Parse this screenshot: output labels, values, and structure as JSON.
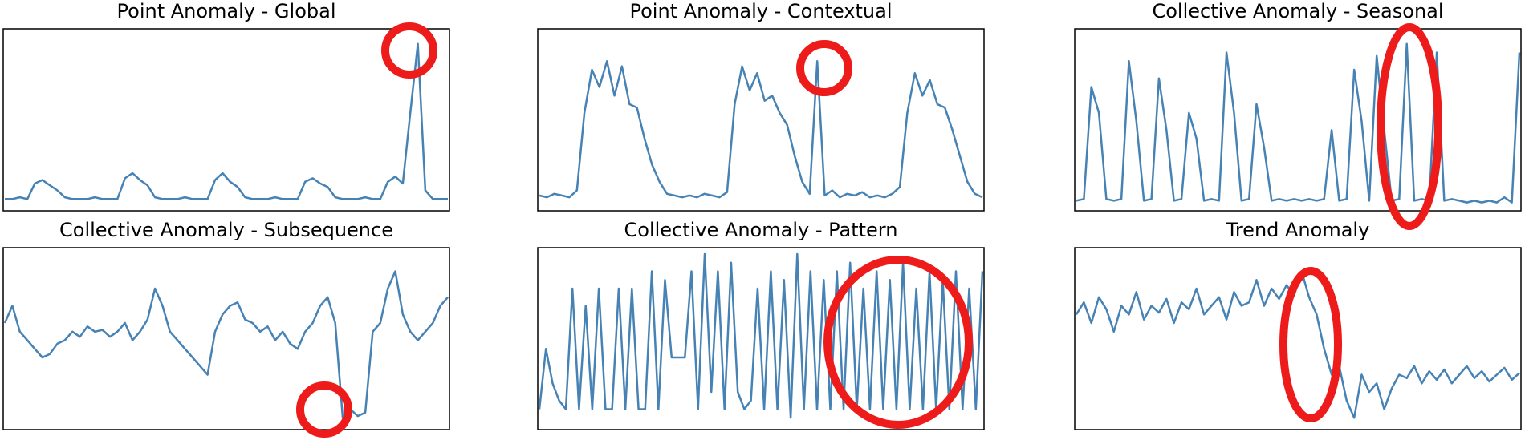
{
  "chart_data": [
    {
      "type": "line",
      "title": "Point Anomaly - Global",
      "color": "#4682b4",
      "ylim": [
        0,
        1
      ],
      "values": [
        0.05,
        0.05,
        0.06,
        0.05,
        0.14,
        0.16,
        0.13,
        0.1,
        0.06,
        0.05,
        0.05,
        0.05,
        0.06,
        0.05,
        0.05,
        0.05,
        0.17,
        0.2,
        0.16,
        0.13,
        0.06,
        0.05,
        0.05,
        0.05,
        0.06,
        0.05,
        0.05,
        0.05,
        0.16,
        0.2,
        0.15,
        0.12,
        0.06,
        0.05,
        0.05,
        0.05,
        0.06,
        0.05,
        0.05,
        0.05,
        0.15,
        0.17,
        0.14,
        0.12,
        0.06,
        0.05,
        0.05,
        0.05,
        0.06,
        0.05,
        0.05,
        0.15,
        0.18,
        0.14,
        0.55,
        0.95,
        0.1,
        0.05,
        0.05,
        0.05
      ]
    },
    {
      "type": "line",
      "title": "Point Anomaly - Contextual",
      "color": "#4682b4",
      "ylim": [
        0,
        1
      ],
      "values": [
        0.07,
        0.06,
        0.08,
        0.07,
        0.06,
        0.1,
        0.55,
        0.8,
        0.7,
        0.85,
        0.65,
        0.82,
        0.6,
        0.58,
        0.4,
        0.25,
        0.15,
        0.08,
        0.07,
        0.06,
        0.07,
        0.06,
        0.08,
        0.07,
        0.06,
        0.09,
        0.6,
        0.82,
        0.68,
        0.78,
        0.62,
        0.65,
        0.55,
        0.48,
        0.3,
        0.15,
        0.08,
        0.85,
        0.07,
        0.1,
        0.06,
        0.08,
        0.07,
        0.09,
        0.06,
        0.07,
        0.06,
        0.08,
        0.12,
        0.55,
        0.78,
        0.65,
        0.74,
        0.6,
        0.58,
        0.45,
        0.3,
        0.15,
        0.08,
        0.06
      ]
    },
    {
      "type": "line",
      "title": "Collective Anomaly - Seasonal",
      "color": "#4682b4",
      "ylim": [
        0,
        1
      ],
      "values": [
        0.04,
        0.05,
        0.7,
        0.55,
        0.05,
        0.04,
        0.05,
        0.85,
        0.5,
        0.04,
        0.05,
        0.75,
        0.45,
        0.04,
        0.05,
        0.55,
        0.4,
        0.04,
        0.05,
        0.04,
        0.9,
        0.55,
        0.04,
        0.05,
        0.6,
        0.35,
        0.04,
        0.05,
        0.04,
        0.05,
        0.04,
        0.05,
        0.04,
        0.05,
        0.45,
        0.04,
        0.05,
        0.8,
        0.5,
        0.04,
        0.88,
        0.45,
        0.04,
        0.05,
        0.95,
        0.04,
        0.05,
        0.04,
        0.9,
        0.04,
        0.05,
        0.04,
        0.03,
        0.04,
        0.03,
        0.04,
        0.03,
        0.06,
        0.03,
        0.9
      ]
    },
    {
      "type": "line",
      "title": "Collective Anomaly - Subsequence",
      "color": "#4682b4",
      "ylim": [
        0,
        1
      ],
      "values": [
        0.6,
        0.7,
        0.55,
        0.5,
        0.45,
        0.4,
        0.42,
        0.48,
        0.5,
        0.55,
        0.52,
        0.58,
        0.55,
        0.56,
        0.52,
        0.55,
        0.6,
        0.5,
        0.55,
        0.62,
        0.8,
        0.7,
        0.55,
        0.5,
        0.45,
        0.4,
        0.35,
        0.3,
        0.55,
        0.65,
        0.7,
        0.72,
        0.62,
        0.6,
        0.55,
        0.58,
        0.5,
        0.55,
        0.48,
        0.45,
        0.55,
        0.6,
        0.7,
        0.75,
        0.6,
        0.05,
        0.1,
        0.06,
        0.08,
        0.55,
        0.6,
        0.8,
        0.9,
        0.65,
        0.55,
        0.5,
        0.55,
        0.6,
        0.7,
        0.75
      ]
    },
    {
      "type": "line",
      "title": "Collective Anomaly - Pattern",
      "color": "#4682b4",
      "ylim": [
        0,
        1
      ],
      "values": [
        0.1,
        0.45,
        0.25,
        0.15,
        0.1,
        0.8,
        0.1,
        0.7,
        0.1,
        0.8,
        0.1,
        0.1,
        0.8,
        0.1,
        0.8,
        0.1,
        0.1,
        0.9,
        0.1,
        0.85,
        0.4,
        0.4,
        0.4,
        0.9,
        0.1,
        1.0,
        0.2,
        0.9,
        0.1,
        0.95,
        0.2,
        0.1,
        0.15,
        0.8,
        0.1,
        0.9,
        0.1,
        0.85,
        0.05,
        1.0,
        0.1,
        0.9,
        0.1,
        0.85,
        0.1,
        0.9,
        0.1,
        0.95,
        0.1,
        0.8,
        0.1,
        0.9,
        0.1,
        0.85,
        0.1,
        0.95,
        0.1,
        0.8,
        0.1,
        0.9,
        0.1,
        0.85,
        0.1,
        0.9,
        0.1,
        0.8,
        0.1,
        0.9
      ]
    },
    {
      "type": "line",
      "title": "Trend Anomaly",
      "color": "#4682b4",
      "ylim": [
        0,
        1
      ],
      "values": [
        0.65,
        0.72,
        0.6,
        0.75,
        0.68,
        0.55,
        0.7,
        0.65,
        0.78,
        0.62,
        0.7,
        0.66,
        0.74,
        0.6,
        0.72,
        0.68,
        0.8,
        0.65,
        0.7,
        0.75,
        0.62,
        0.78,
        0.7,
        0.72,
        0.85,
        0.7,
        0.8,
        0.74,
        0.82,
        0.76,
        0.9,
        0.75,
        0.65,
        0.45,
        0.3,
        0.35,
        0.15,
        0.05,
        0.3,
        0.2,
        0.25,
        0.1,
        0.22,
        0.3,
        0.28,
        0.35,
        0.25,
        0.32,
        0.27,
        0.33,
        0.25,
        0.3,
        0.35,
        0.28,
        0.32,
        0.26,
        0.3,
        0.34,
        0.27,
        0.31
      ]
    }
  ]
}
